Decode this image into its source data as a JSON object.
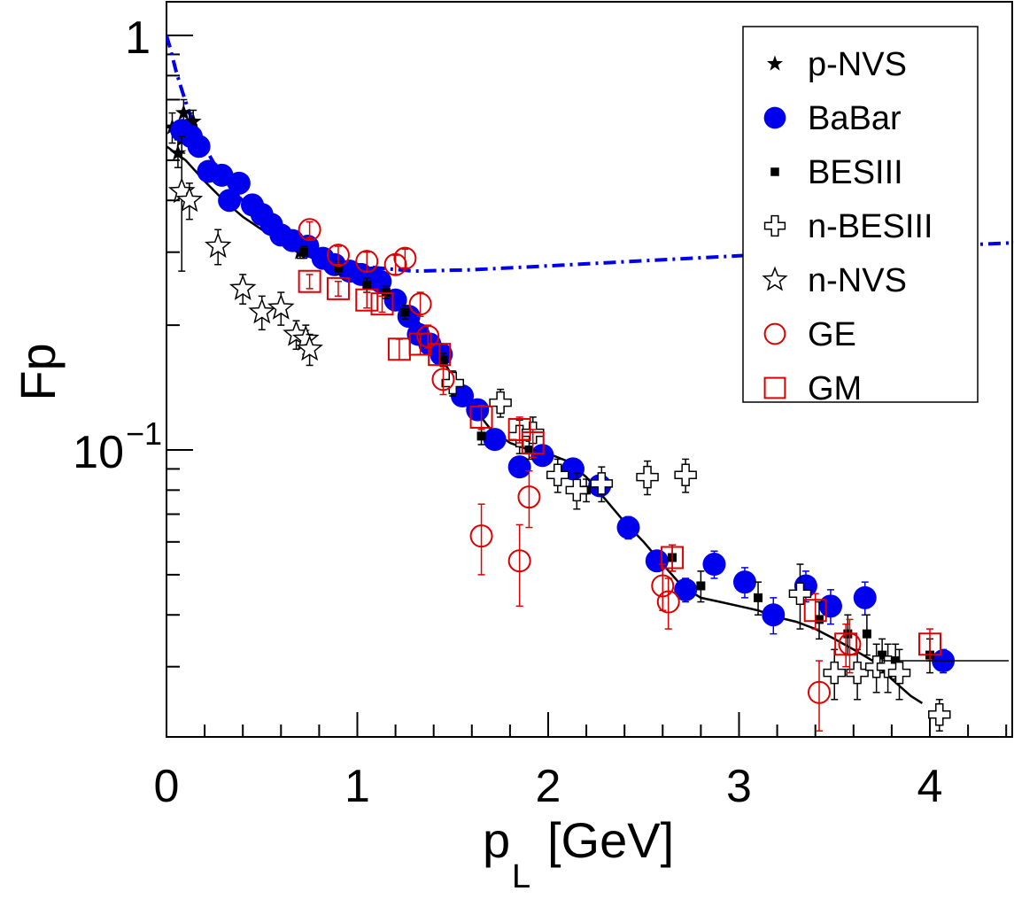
{
  "chart_data": {
    "type": "scatter",
    "xlabel": "p",
    "xlabel_sub": "L",
    "xlabel_unit": "[GeV]",
    "ylabel": "Fp",
    "xlim": [
      0,
      4.45
    ],
    "ylim": [
      0.027,
      1.1
    ],
    "yscale": "log",
    "grid": false,
    "legend_position": "top-right",
    "x_ticks": [
      0,
      1,
      2,
      3,
      4
    ],
    "x_tick_labels": [
      "0",
      "1",
      "2",
      "3",
      "4"
    ],
    "y_tick_one": "1",
    "y_tick_tenth_base": "10",
    "y_tick_tenth_exp": "−1",
    "series": [
      {
        "name": "p-NVS",
        "marker": "star-filled",
        "color": "#000000",
        "points": [
          [
            0.03,
            0.6,
            0.05
          ],
          [
            0.06,
            0.52,
            0.04
          ],
          [
            0.09,
            0.65,
            0.05
          ],
          [
            0.12,
            0.6,
            0.05
          ],
          [
            0.14,
            0.62,
            0.04
          ],
          [
            0.08,
            0.56,
            0.04
          ],
          [
            0.7,
            0.3,
            0.01
          ]
        ]
      },
      {
        "name": "BaBar",
        "marker": "circle-filled",
        "color": "#0000ee",
        "points": [
          [
            0.08,
            0.59,
            0.03
          ],
          [
            0.13,
            0.57,
            0.03
          ],
          [
            0.17,
            0.54,
            0.03
          ],
          [
            0.22,
            0.47,
            0.02
          ],
          [
            0.29,
            0.46,
            0.02
          ],
          [
            0.33,
            0.4,
            0.02
          ],
          [
            0.38,
            0.44,
            0.02
          ],
          [
            0.45,
            0.39,
            0.02
          ],
          [
            0.5,
            0.37,
            0.015
          ],
          [
            0.55,
            0.35,
            0.015
          ],
          [
            0.6,
            0.33,
            0.012
          ],
          [
            0.66,
            0.32,
            0.012
          ],
          [
            0.74,
            0.31,
            0.012
          ],
          [
            0.82,
            0.29,
            0.01
          ],
          [
            0.88,
            0.28,
            0.01
          ],
          [
            0.96,
            0.27,
            0.01
          ],
          [
            1.02,
            0.265,
            0.01
          ],
          [
            1.08,
            0.26,
            0.01
          ],
          [
            1.12,
            0.255,
            0.01
          ],
          [
            1.2,
            0.23,
            0.01
          ],
          [
            1.27,
            0.21,
            0.01
          ],
          [
            1.32,
            0.19,
            0.01
          ],
          [
            1.38,
            0.18,
            0.008
          ],
          [
            1.44,
            0.17,
            0.008
          ],
          [
            1.55,
            0.135,
            0.006
          ],
          [
            1.63,
            0.125,
            0.006
          ],
          [
            1.72,
            0.106,
            0.005
          ],
          [
            1.85,
            0.091,
            0.004
          ],
          [
            1.97,
            0.097,
            0.004
          ],
          [
            2.13,
            0.09,
            0.004
          ],
          [
            2.27,
            0.082,
            0.004
          ],
          [
            2.42,
            0.065,
            0.004
          ],
          [
            2.57,
            0.054,
            0.003
          ],
          [
            2.72,
            0.046,
            0.003
          ],
          [
            2.87,
            0.053,
            0.004
          ],
          [
            3.03,
            0.048,
            0.004
          ],
          [
            3.18,
            0.04,
            0.004
          ],
          [
            3.35,
            0.047,
            0.004
          ],
          [
            3.48,
            0.042,
            0.004
          ],
          [
            3.66,
            0.044,
            0.004
          ],
          [
            4.07,
            0.031,
            0.002
          ]
        ]
      },
      {
        "name": "BESIII",
        "marker": "square-filled",
        "color": "#000000",
        "points": [
          [
            0.72,
            0.3,
            0.01
          ],
          [
            0.9,
            0.275,
            0.01
          ],
          [
            1.05,
            0.25,
            0.01
          ],
          [
            1.15,
            0.24,
            0.008
          ],
          [
            1.25,
            0.215,
            0.008
          ],
          [
            1.45,
            0.165,
            0.006
          ],
          [
            1.65,
            0.108,
            0.005
          ],
          [
            1.9,
            0.1,
            0.005
          ],
          [
            2.2,
            0.08,
            0.005
          ],
          [
            2.65,
            0.055,
            0.004
          ],
          [
            2.8,
            0.047,
            0.004
          ],
          [
            3.1,
            0.044,
            0.004
          ],
          [
            3.42,
            0.039,
            0.004
          ],
          [
            3.57,
            0.036,
            0.004
          ],
          [
            3.67,
            0.036,
            0.004
          ],
          [
            3.75,
            0.032,
            0.003
          ],
          [
            3.82,
            0.031,
            0.003
          ],
          [
            4.0,
            0.032,
            0.003
          ]
        ]
      },
      {
        "name": "n-BESIII",
        "marker": "cross-open",
        "color": "#000000",
        "points": [
          [
            1.5,
            0.145,
            0.01
          ],
          [
            1.75,
            0.13,
            0.01
          ],
          [
            1.85,
            0.108,
            0.01
          ],
          [
            1.92,
            0.11,
            0.01
          ],
          [
            2.05,
            0.087,
            0.008
          ],
          [
            2.15,
            0.08,
            0.008
          ],
          [
            2.28,
            0.083,
            0.008
          ],
          [
            2.52,
            0.086,
            0.008
          ],
          [
            2.72,
            0.087,
            0.008
          ],
          [
            3.32,
            0.045,
            0.008
          ],
          [
            3.5,
            0.029,
            0.004
          ],
          [
            3.62,
            0.029,
            0.004
          ],
          [
            3.72,
            0.03,
            0.004
          ],
          [
            3.78,
            0.03,
            0.004
          ],
          [
            3.84,
            0.029,
            0.004
          ],
          [
            4.05,
            0.023,
            0.002
          ]
        ]
      },
      {
        "name": "n-NVS",
        "marker": "star-open",
        "color": "#000000",
        "points": [
          [
            0.08,
            0.42,
            0.15
          ],
          [
            0.12,
            0.4,
            0.04
          ],
          [
            0.27,
            0.31,
            0.03
          ],
          [
            0.4,
            0.245,
            0.02
          ],
          [
            0.5,
            0.215,
            0.02
          ],
          [
            0.6,
            0.22,
            0.02
          ],
          [
            0.68,
            0.19,
            0.015
          ],
          [
            0.73,
            0.185,
            0.015
          ],
          [
            0.75,
            0.175,
            0.015
          ]
        ]
      },
      {
        "name": "GE",
        "marker": "circle-open",
        "color": "#dd0000",
        "points": [
          [
            0.75,
            0.34,
            0.015
          ],
          [
            0.9,
            0.295,
            0.015
          ],
          [
            1.05,
            0.285,
            0.015
          ],
          [
            1.2,
            0.28,
            0.015
          ],
          [
            1.25,
            0.29,
            0.015
          ],
          [
            1.33,
            0.225,
            0.015
          ],
          [
            1.37,
            0.188,
            0.012
          ],
          [
            1.45,
            0.148,
            0.012
          ],
          [
            1.65,
            0.062,
            0.012
          ],
          [
            1.85,
            0.054,
            0.012
          ],
          [
            1.9,
            0.077,
            0.012
          ],
          [
            2.6,
            0.047,
            0.006
          ],
          [
            2.63,
            0.043,
            0.006
          ],
          [
            3.42,
            0.026,
            0.005
          ],
          [
            3.58,
            0.034,
            0.005
          ]
        ]
      },
      {
        "name": "GM",
        "marker": "square-open",
        "color": "#dd0000",
        "points": [
          [
            0.75,
            0.255,
            0.01
          ],
          [
            0.9,
            0.245,
            0.01
          ],
          [
            1.05,
            0.23,
            0.01
          ],
          [
            1.13,
            0.225,
            0.01
          ],
          [
            1.22,
            0.175,
            0.01
          ],
          [
            1.33,
            0.18,
            0.01
          ],
          [
            1.43,
            0.17,
            0.01
          ],
          [
            1.65,
            0.12,
            0.008
          ],
          [
            1.85,
            0.112,
            0.008
          ],
          [
            1.92,
            0.104,
            0.008
          ],
          [
            2.65,
            0.055,
            0.004
          ],
          [
            3.4,
            0.041,
            0.004
          ],
          [
            3.56,
            0.034,
            0.004
          ],
          [
            4.0,
            0.034,
            0.003
          ]
        ]
      }
    ],
    "fit_curve": {
      "color": "#000000",
      "points": [
        [
          0.0,
          0.54
        ],
        [
          0.1,
          0.5
        ],
        [
          0.2,
          0.445
        ],
        [
          0.3,
          0.4
        ],
        [
          0.4,
          0.365
        ],
        [
          0.5,
          0.34
        ],
        [
          0.6,
          0.32
        ],
        [
          0.7,
          0.3
        ],
        [
          0.8,
          0.285
        ],
        [
          0.9,
          0.275
        ],
        [
          1.0,
          0.265
        ],
        [
          1.1,
          0.255
        ],
        [
          1.2,
          0.235
        ],
        [
          1.3,
          0.21
        ],
        [
          1.4,
          0.18
        ],
        [
          1.5,
          0.15
        ],
        [
          1.6,
          0.128
        ],
        [
          1.7,
          0.112
        ],
        [
          1.8,
          0.104
        ],
        [
          1.9,
          0.1
        ],
        [
          2.0,
          0.098
        ],
        [
          2.1,
          0.094
        ],
        [
          2.2,
          0.086
        ],
        [
          2.3,
          0.076
        ],
        [
          2.4,
          0.067
        ],
        [
          2.5,
          0.06
        ],
        [
          2.6,
          0.053
        ],
        [
          2.7,
          0.047
        ],
        [
          2.8,
          0.044
        ],
        [
          2.9,
          0.043
        ],
        [
          3.0,
          0.042
        ],
        [
          3.1,
          0.041
        ],
        [
          3.2,
          0.0395
        ],
        [
          3.3,
          0.0385
        ],
        [
          3.4,
          0.037
        ],
        [
          3.5,
          0.035
        ],
        [
          3.6,
          0.033
        ],
        [
          3.7,
          0.031
        ],
        [
          3.8,
          0.028
        ],
        [
          3.9,
          0.0255
        ],
        [
          3.96,
          0.0245
        ]
      ]
    },
    "dashed_curve": {
      "color": "#0000ee",
      "points": [
        [
          0.0,
          1.0
        ],
        [
          0.02,
          0.93
        ],
        [
          0.05,
          0.82
        ],
        [
          0.08,
          0.74
        ],
        [
          0.12,
          0.65
        ],
        [
          0.17,
          0.57
        ],
        [
          0.25,
          0.49
        ],
        [
          0.35,
          0.42
        ],
        [
          0.5,
          0.36
        ],
        [
          0.7,
          0.31
        ],
        [
          0.9,
          0.285
        ],
        [
          1.1,
          0.275
        ],
        [
          1.3,
          0.27
        ],
        [
          1.6,
          0.272
        ],
        [
          2.0,
          0.278
        ],
        [
          2.5,
          0.286
        ],
        [
          3.0,
          0.294
        ],
        [
          3.5,
          0.302
        ],
        [
          4.0,
          0.31
        ],
        [
          4.45,
          0.316
        ]
      ]
    }
  }
}
